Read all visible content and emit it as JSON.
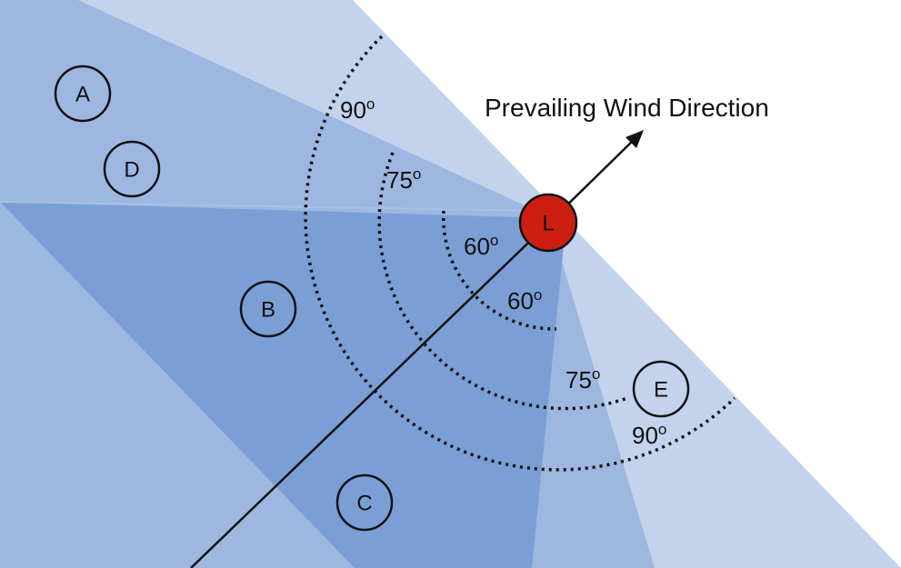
{
  "title": "Prevailing Wind Direction",
  "source": {
    "label": "L",
    "color": "#cc1f12"
  },
  "receptors": [
    {
      "id": "receptor-a",
      "label": "A"
    },
    {
      "id": "receptor-d",
      "label": "D"
    },
    {
      "id": "receptor-b",
      "label": "B"
    },
    {
      "id": "receptor-c",
      "label": "C"
    },
    {
      "id": "receptor-e",
      "label": "E"
    }
  ],
  "angles": {
    "upper_90": "90",
    "upper_75": "75",
    "upper_60": "60",
    "lower_60": "60",
    "lower_75": "75",
    "lower_90": "90",
    "degree_mark": "o"
  },
  "colors": {
    "sector_90": "#c3d3ec",
    "sector_75": "#9db7e0",
    "sector_60": "#7b9fd5",
    "outline": "#111111",
    "source_fill": "#cc1f12"
  }
}
